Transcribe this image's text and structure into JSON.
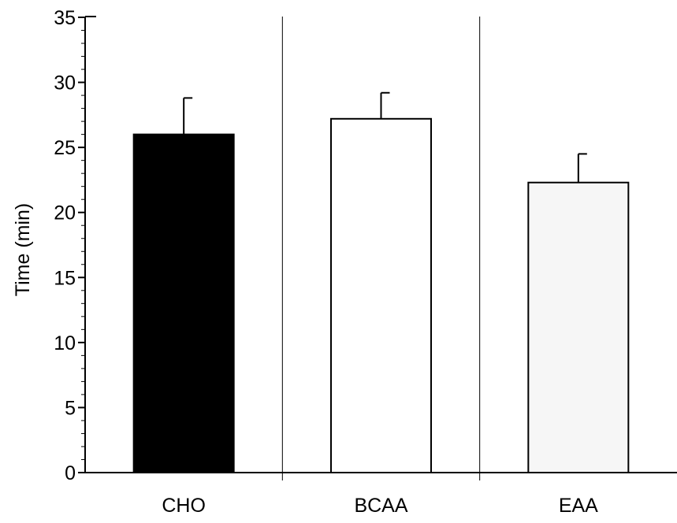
{
  "chart_data": {
    "type": "bar",
    "title": "",
    "xlabel": "",
    "ylabel": "Time (min)",
    "ylim": [
      0,
      35
    ],
    "yticks": [
      0,
      5,
      10,
      15,
      20,
      25,
      30,
      35
    ],
    "grid": false,
    "legend": "none",
    "categories": [
      "CHO",
      "BCAA",
      "EAA"
    ],
    "values": [
      26.0,
      27.2,
      22.3
    ],
    "errors": [
      2.8,
      2.0,
      2.2
    ],
    "colors": [
      "#000000",
      "#ffffff",
      "#f6f6f6"
    ]
  }
}
